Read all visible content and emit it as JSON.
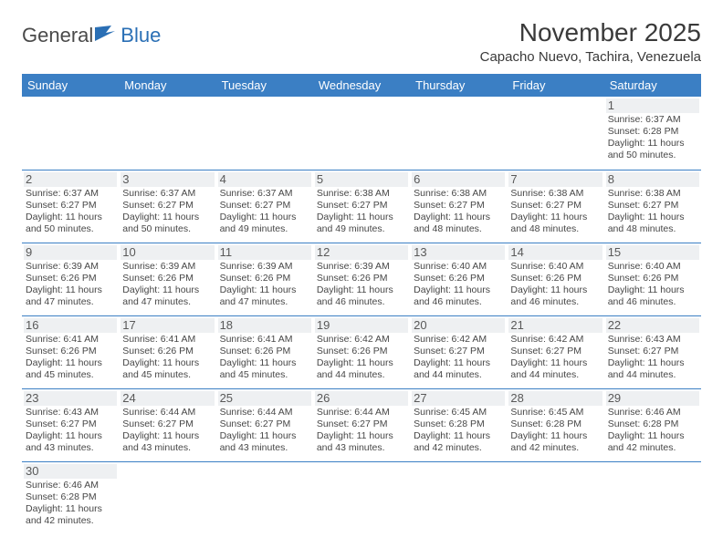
{
  "brand": {
    "part1": "General",
    "part2": "Blue"
  },
  "title": "November 2025",
  "location": "Capacho Nuevo, Tachira, Venezuela",
  "colors": {
    "header_bg": "#3b7fc4",
    "header_text": "#ffffff",
    "daynum_bg": "#eef0f2",
    "border": "#3b7fc4",
    "text": "#3a3a3a"
  },
  "weekdays": [
    "Sunday",
    "Monday",
    "Tuesday",
    "Wednesday",
    "Thursday",
    "Friday",
    "Saturday"
  ],
  "weeks": [
    [
      null,
      null,
      null,
      null,
      null,
      null,
      {
        "n": "1",
        "sr": "6:37 AM",
        "ss": "6:28 PM",
        "dl": "11 hours and 50 minutes."
      }
    ],
    [
      {
        "n": "2",
        "sr": "6:37 AM",
        "ss": "6:27 PM",
        "dl": "11 hours and 50 minutes."
      },
      {
        "n": "3",
        "sr": "6:37 AM",
        "ss": "6:27 PM",
        "dl": "11 hours and 50 minutes."
      },
      {
        "n": "4",
        "sr": "6:37 AM",
        "ss": "6:27 PM",
        "dl": "11 hours and 49 minutes."
      },
      {
        "n": "5",
        "sr": "6:38 AM",
        "ss": "6:27 PM",
        "dl": "11 hours and 49 minutes."
      },
      {
        "n": "6",
        "sr": "6:38 AM",
        "ss": "6:27 PM",
        "dl": "11 hours and 48 minutes."
      },
      {
        "n": "7",
        "sr": "6:38 AM",
        "ss": "6:27 PM",
        "dl": "11 hours and 48 minutes."
      },
      {
        "n": "8",
        "sr": "6:38 AM",
        "ss": "6:27 PM",
        "dl": "11 hours and 48 minutes."
      }
    ],
    [
      {
        "n": "9",
        "sr": "6:39 AM",
        "ss": "6:26 PM",
        "dl": "11 hours and 47 minutes."
      },
      {
        "n": "10",
        "sr": "6:39 AM",
        "ss": "6:26 PM",
        "dl": "11 hours and 47 minutes."
      },
      {
        "n": "11",
        "sr": "6:39 AM",
        "ss": "6:26 PM",
        "dl": "11 hours and 47 minutes."
      },
      {
        "n": "12",
        "sr": "6:39 AM",
        "ss": "6:26 PM",
        "dl": "11 hours and 46 minutes."
      },
      {
        "n": "13",
        "sr": "6:40 AM",
        "ss": "6:26 PM",
        "dl": "11 hours and 46 minutes."
      },
      {
        "n": "14",
        "sr": "6:40 AM",
        "ss": "6:26 PM",
        "dl": "11 hours and 46 minutes."
      },
      {
        "n": "15",
        "sr": "6:40 AM",
        "ss": "6:26 PM",
        "dl": "11 hours and 46 minutes."
      }
    ],
    [
      {
        "n": "16",
        "sr": "6:41 AM",
        "ss": "6:26 PM",
        "dl": "11 hours and 45 minutes."
      },
      {
        "n": "17",
        "sr": "6:41 AM",
        "ss": "6:26 PM",
        "dl": "11 hours and 45 minutes."
      },
      {
        "n": "18",
        "sr": "6:41 AM",
        "ss": "6:26 PM",
        "dl": "11 hours and 45 minutes."
      },
      {
        "n": "19",
        "sr": "6:42 AM",
        "ss": "6:26 PM",
        "dl": "11 hours and 44 minutes."
      },
      {
        "n": "20",
        "sr": "6:42 AM",
        "ss": "6:27 PM",
        "dl": "11 hours and 44 minutes."
      },
      {
        "n": "21",
        "sr": "6:42 AM",
        "ss": "6:27 PM",
        "dl": "11 hours and 44 minutes."
      },
      {
        "n": "22",
        "sr": "6:43 AM",
        "ss": "6:27 PM",
        "dl": "11 hours and 44 minutes."
      }
    ],
    [
      {
        "n": "23",
        "sr": "6:43 AM",
        "ss": "6:27 PM",
        "dl": "11 hours and 43 minutes."
      },
      {
        "n": "24",
        "sr": "6:44 AM",
        "ss": "6:27 PM",
        "dl": "11 hours and 43 minutes."
      },
      {
        "n": "25",
        "sr": "6:44 AM",
        "ss": "6:27 PM",
        "dl": "11 hours and 43 minutes."
      },
      {
        "n": "26",
        "sr": "6:44 AM",
        "ss": "6:27 PM",
        "dl": "11 hours and 43 minutes."
      },
      {
        "n": "27",
        "sr": "6:45 AM",
        "ss": "6:28 PM",
        "dl": "11 hours and 42 minutes."
      },
      {
        "n": "28",
        "sr": "6:45 AM",
        "ss": "6:28 PM",
        "dl": "11 hours and 42 minutes."
      },
      {
        "n": "29",
        "sr": "6:46 AM",
        "ss": "6:28 PM",
        "dl": "11 hours and 42 minutes."
      }
    ],
    [
      {
        "n": "30",
        "sr": "6:46 AM",
        "ss": "6:28 PM",
        "dl": "11 hours and 42 minutes."
      },
      null,
      null,
      null,
      null,
      null,
      null
    ]
  ],
  "labels": {
    "sunrise": "Sunrise:",
    "sunset": "Sunset:",
    "daylight": "Daylight:"
  }
}
